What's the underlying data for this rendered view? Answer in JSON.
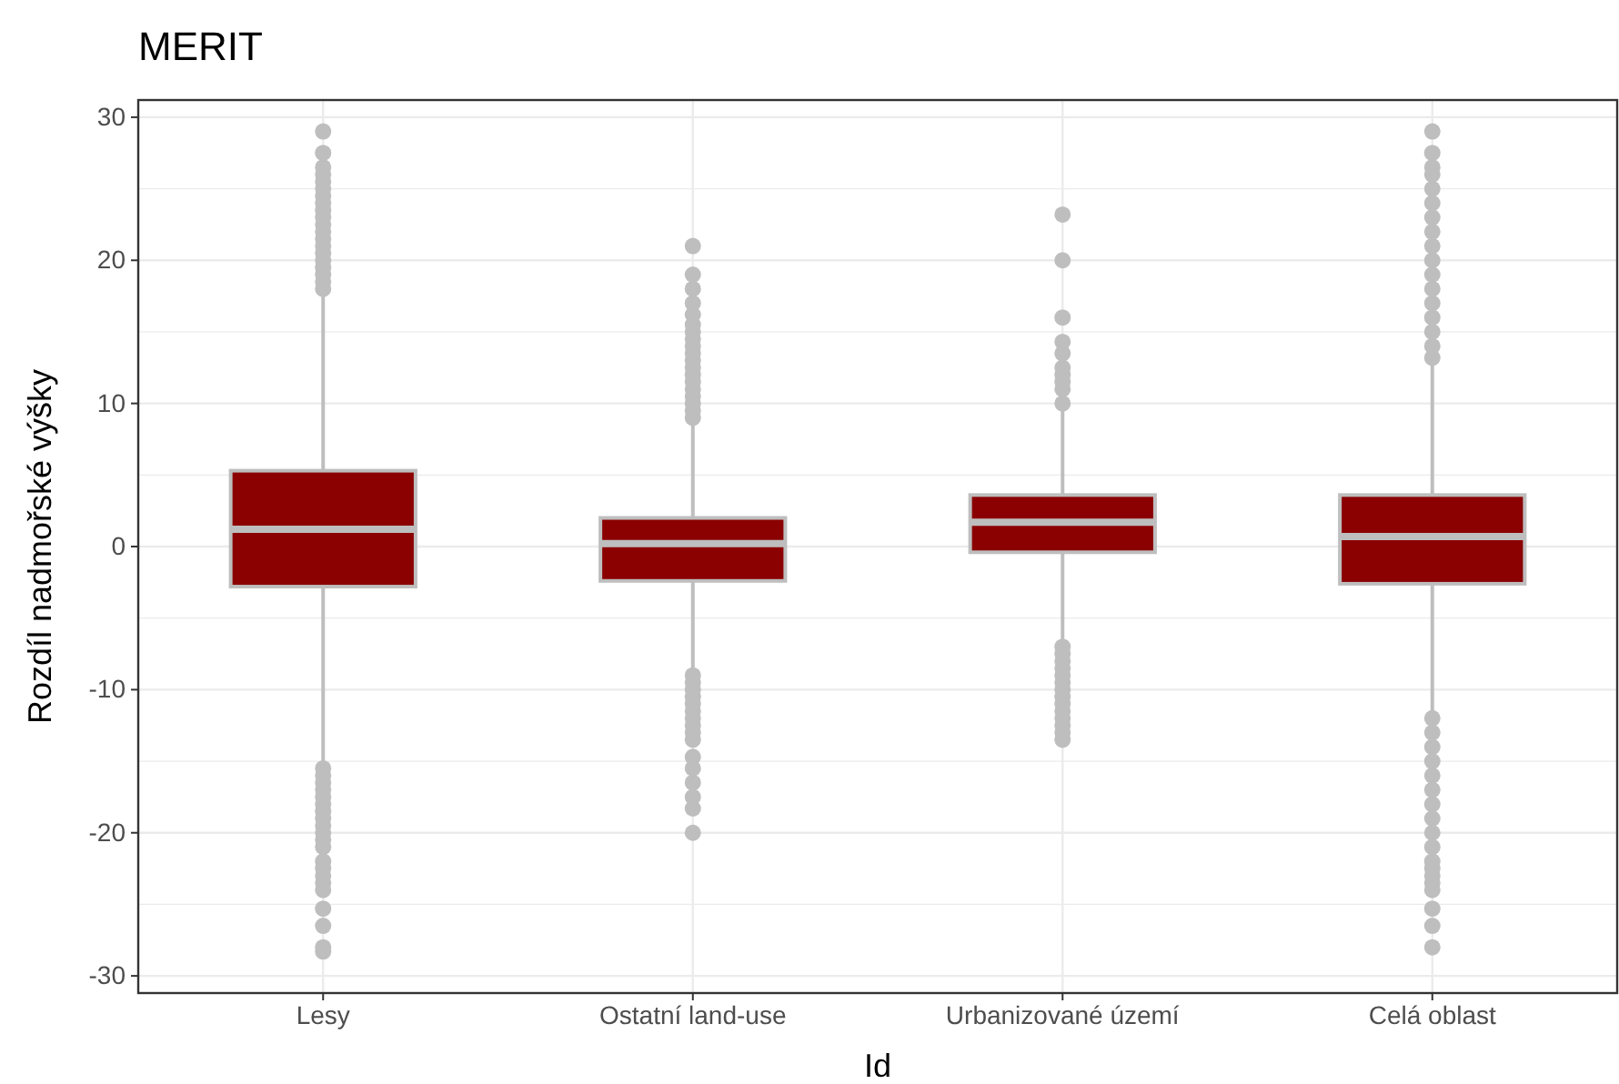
{
  "chart_data": {
    "type": "box",
    "title": "MERIT",
    "xlabel": "Id",
    "ylabel": "Rozdíl nadmořské výšky",
    "categories": [
      "Lesy",
      "Ostatní land-use",
      "Urbanizované území",
      "Celá oblast"
    ],
    "ylim": [
      -31.2,
      31.2
    ],
    "yticks": [
      -30,
      -20,
      -10,
      0,
      10,
      20,
      30
    ],
    "grid": true,
    "color": "#8b0000",
    "boxes": [
      {
        "low": -15.3,
        "q1": -2.8,
        "median": 1.2,
        "q3": 5.3,
        "high": 17.7,
        "outliers": [
          18,
          18.5,
          19,
          19.5,
          20,
          20.5,
          21,
          21.5,
          22,
          22.5,
          23,
          23.5,
          24,
          24.5,
          25,
          25.5,
          26,
          26.5,
          27.5,
          29,
          -15.5,
          -16,
          -16.5,
          -17,
          -17.5,
          -18,
          -18.5,
          -19,
          -19.5,
          -20,
          -20.5,
          -21,
          -22,
          -22.5,
          -23,
          -23.5,
          -24,
          -25.3,
          -26.5,
          -28,
          -28.3
        ]
      },
      {
        "low": -8.9,
        "q1": -2.4,
        "median": 0.2,
        "q3": 2.0,
        "high": 8.8,
        "outliers": [
          9,
          9.5,
          10,
          10.5,
          11,
          11.5,
          12,
          12.5,
          13,
          13.5,
          14,
          14.5,
          15,
          15.5,
          16.2,
          17,
          18,
          19,
          21,
          -9,
          -9.5,
          -10,
          -10.5,
          -11,
          -11.5,
          -12,
          -12.5,
          -13,
          -13.5,
          -14.7,
          -15.5,
          -16.5,
          -17.5,
          -18.3,
          -20
        ]
      },
      {
        "low": -6.7,
        "q1": -0.4,
        "median": 1.7,
        "q3": 3.6,
        "high": 9.5,
        "outliers": [
          10,
          11,
          11.5,
          12,
          12.5,
          13.5,
          14.3,
          16,
          20,
          23.2,
          -7,
          -7.5,
          -8,
          -8.5,
          -9,
          -9.5,
          -10,
          -10.5,
          -11,
          -11.5,
          -12,
          -12.5,
          -13,
          -13.5
        ]
      },
      {
        "low": -11.8,
        "q1": -2.6,
        "median": 0.7,
        "q3": 3.6,
        "high": 12.8,
        "outliers": [
          13.2,
          14,
          15,
          16,
          17,
          18,
          19,
          20,
          21,
          22,
          23,
          24,
          25,
          26,
          26.5,
          27.5,
          29,
          -12,
          -13,
          -14,
          -15,
          -16,
          -17,
          -18,
          -19,
          -20,
          -21,
          -22,
          -22.5,
          -23,
          -23.5,
          -24,
          -25.3,
          -26.5,
          -28
        ]
      }
    ]
  }
}
